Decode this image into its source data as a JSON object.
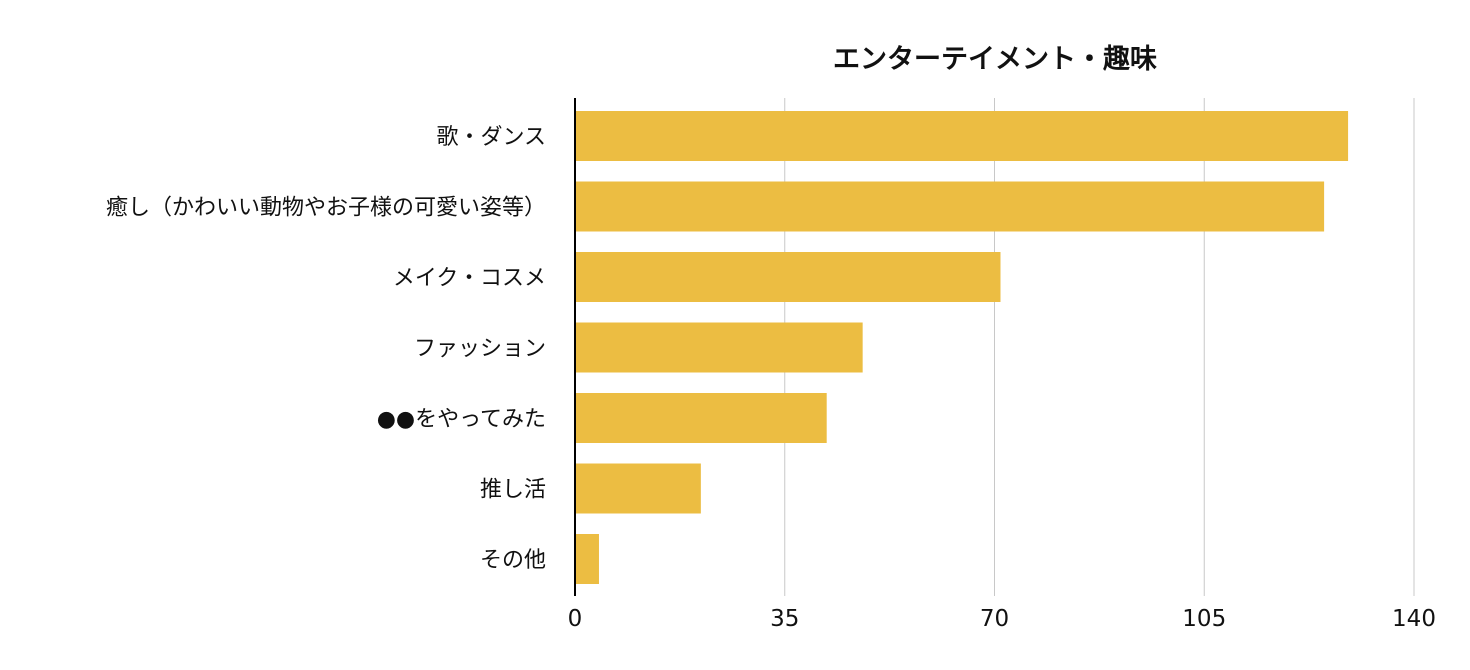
{
  "chart_data": {
    "type": "bar",
    "orientation": "horizontal",
    "title": "エンターテイメント・趣味",
    "xlabel": "",
    "ylabel": "",
    "categories": [
      "歌・ダンス",
      "癒し（かわいい動物やお子様の可愛い姿等）",
      "メイク・コスメ",
      "ファッション",
      "●●をやってみた",
      "推し活",
      "その他"
    ],
    "values": [
      129,
      125,
      71,
      48,
      42,
      21,
      4
    ],
    "xlim": [
      0,
      140
    ],
    "ticks": [
      0,
      35,
      70,
      105,
      140
    ],
    "tick_labels": [
      "0",
      "35",
      "70",
      "105",
      "140"
    ],
    "grid": "vertical",
    "legend": "none",
    "colors": {
      "bar": "#ECBD42",
      "grid": "#C8C8C8",
      "axis": "#000000",
      "text": "#111111"
    }
  }
}
